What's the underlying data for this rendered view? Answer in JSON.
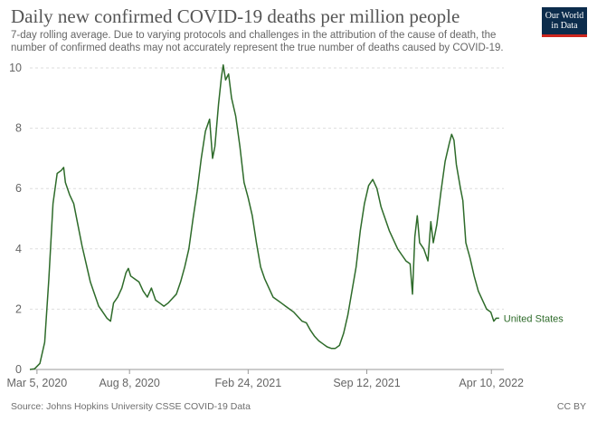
{
  "header": {
    "title": "Daily new confirmed COVID-19 deaths per million people",
    "subtitle": "7-day rolling average. Due to varying protocols and challenges in the attribution of the cause of death, the number of confirmed deaths may not accurately represent the true number of deaths caused by COVID-19."
  },
  "logo": {
    "line1": "Our World",
    "line2": "in Data"
  },
  "footer": {
    "source": "Source: Johns Hopkins University CSSE COVID-19 Data",
    "license": "CC BY"
  },
  "colors": {
    "series": "#2e6b2a",
    "grid": "#dddddd",
    "axis": "#999999"
  },
  "chart_data": {
    "type": "line",
    "title": "Daily new confirmed COVID-19 deaths per million people",
    "ylim": [
      0,
      10
    ],
    "yticks": [
      0,
      2,
      4,
      6,
      8,
      10
    ],
    "xlim": [
      "2020-02-22",
      "2022-05-01"
    ],
    "xticks": [
      {
        "date": "2020-03-05",
        "label": "Mar 5, 2020"
      },
      {
        "date": "2020-08-08",
        "label": "Aug 8, 2020"
      },
      {
        "date": "2021-02-24",
        "label": "Feb 24, 2021"
      },
      {
        "date": "2021-09-12",
        "label": "Sep 12, 2021"
      },
      {
        "date": "2022-04-10",
        "label": "Apr 10, 2022"
      }
    ],
    "grid": true,
    "series": [
      {
        "name": "United States",
        "points": [
          [
            "2020-02-22",
            0.0
          ],
          [
            "2020-03-01",
            0.02
          ],
          [
            "2020-03-10",
            0.2
          ],
          [
            "2020-03-18",
            0.9
          ],
          [
            "2020-03-25",
            3.0
          ],
          [
            "2020-04-01",
            5.5
          ],
          [
            "2020-04-08",
            6.5
          ],
          [
            "2020-04-15",
            6.6
          ],
          [
            "2020-04-19",
            6.7
          ],
          [
            "2020-04-22",
            6.2
          ],
          [
            "2020-04-29",
            5.8
          ],
          [
            "2020-05-06",
            5.5
          ],
          [
            "2020-05-13",
            4.8
          ],
          [
            "2020-05-20",
            4.1
          ],
          [
            "2020-05-27",
            3.5
          ],
          [
            "2020-06-03",
            2.9
          ],
          [
            "2020-06-10",
            2.5
          ],
          [
            "2020-06-17",
            2.1
          ],
          [
            "2020-06-24",
            1.9
          ],
          [
            "2020-07-01",
            1.7
          ],
          [
            "2020-07-07",
            1.6
          ],
          [
            "2020-07-12",
            2.2
          ],
          [
            "2020-07-19",
            2.4
          ],
          [
            "2020-07-26",
            2.7
          ],
          [
            "2020-08-02",
            3.2
          ],
          [
            "2020-08-06",
            3.35
          ],
          [
            "2020-08-10",
            3.1
          ],
          [
            "2020-08-17",
            3.0
          ],
          [
            "2020-08-24",
            2.9
          ],
          [
            "2020-08-31",
            2.6
          ],
          [
            "2020-09-07",
            2.4
          ],
          [
            "2020-09-14",
            2.7
          ],
          [
            "2020-09-21",
            2.3
          ],
          [
            "2020-09-28",
            2.2
          ],
          [
            "2020-10-05",
            2.1
          ],
          [
            "2020-10-12",
            2.2
          ],
          [
            "2020-10-19",
            2.35
          ],
          [
            "2020-10-26",
            2.5
          ],
          [
            "2020-11-02",
            2.9
          ],
          [
            "2020-11-09",
            3.4
          ],
          [
            "2020-11-16",
            4.0
          ],
          [
            "2020-11-23",
            5.0
          ],
          [
            "2020-11-30",
            5.9
          ],
          [
            "2020-12-07",
            7.0
          ],
          [
            "2020-12-14",
            7.9
          ],
          [
            "2020-12-21",
            8.3
          ],
          [
            "2020-12-26",
            7.0
          ],
          [
            "2020-12-30",
            7.4
          ],
          [
            "2021-01-05",
            8.8
          ],
          [
            "2021-01-10",
            9.7
          ],
          [
            "2021-01-13",
            10.1
          ],
          [
            "2021-01-17",
            9.6
          ],
          [
            "2021-01-22",
            9.8
          ],
          [
            "2021-01-27",
            9.0
          ],
          [
            "2021-02-03",
            8.4
          ],
          [
            "2021-02-10",
            7.4
          ],
          [
            "2021-02-17",
            6.2
          ],
          [
            "2021-02-24",
            5.7
          ],
          [
            "2021-03-03",
            5.1
          ],
          [
            "2021-03-10",
            4.2
          ],
          [
            "2021-03-17",
            3.4
          ],
          [
            "2021-03-24",
            3.0
          ],
          [
            "2021-03-31",
            2.7
          ],
          [
            "2021-04-07",
            2.4
          ],
          [
            "2021-04-14",
            2.3
          ],
          [
            "2021-04-21",
            2.2
          ],
          [
            "2021-04-28",
            2.1
          ],
          [
            "2021-05-05",
            2.0
          ],
          [
            "2021-05-12",
            1.9
          ],
          [
            "2021-05-19",
            1.75
          ],
          [
            "2021-05-26",
            1.6
          ],
          [
            "2021-06-02",
            1.55
          ],
          [
            "2021-06-09",
            1.3
          ],
          [
            "2021-06-16",
            1.1
          ],
          [
            "2021-06-23",
            0.95
          ],
          [
            "2021-06-30",
            0.85
          ],
          [
            "2021-07-07",
            0.75
          ],
          [
            "2021-07-14",
            0.7
          ],
          [
            "2021-07-21",
            0.7
          ],
          [
            "2021-07-28",
            0.8
          ],
          [
            "2021-08-04",
            1.2
          ],
          [
            "2021-08-11",
            1.8
          ],
          [
            "2021-08-18",
            2.6
          ],
          [
            "2021-08-25",
            3.4
          ],
          [
            "2021-09-01",
            4.6
          ],
          [
            "2021-09-08",
            5.5
          ],
          [
            "2021-09-15",
            6.1
          ],
          [
            "2021-09-22",
            6.3
          ],
          [
            "2021-09-29",
            6.0
          ],
          [
            "2021-10-06",
            5.4
          ],
          [
            "2021-10-13",
            5.0
          ],
          [
            "2021-10-20",
            4.6
          ],
          [
            "2021-10-27",
            4.3
          ],
          [
            "2021-11-03",
            4.0
          ],
          [
            "2021-11-10",
            3.8
          ],
          [
            "2021-11-17",
            3.6
          ],
          [
            "2021-11-24",
            3.5
          ],
          [
            "2021-11-28",
            2.5
          ],
          [
            "2021-12-02",
            4.4
          ],
          [
            "2021-12-06",
            5.1
          ],
          [
            "2021-12-10",
            4.2
          ],
          [
            "2021-12-17",
            4.0
          ],
          [
            "2021-12-24",
            3.6
          ],
          [
            "2021-12-29",
            4.9
          ],
          [
            "2022-01-02",
            4.2
          ],
          [
            "2022-01-08",
            4.8
          ],
          [
            "2022-01-15",
            5.9
          ],
          [
            "2022-01-22",
            6.9
          ],
          [
            "2022-01-29",
            7.5
          ],
          [
            "2022-02-02",
            7.8
          ],
          [
            "2022-02-06",
            7.6
          ],
          [
            "2022-02-10",
            6.8
          ],
          [
            "2022-02-17",
            6.0
          ],
          [
            "2022-02-21",
            5.6
          ],
          [
            "2022-02-26",
            4.2
          ],
          [
            "2022-03-05",
            3.7
          ],
          [
            "2022-03-12",
            3.1
          ],
          [
            "2022-03-19",
            2.6
          ],
          [
            "2022-03-26",
            2.3
          ],
          [
            "2022-04-02",
            2.0
          ],
          [
            "2022-04-09",
            1.9
          ],
          [
            "2022-04-14",
            1.6
          ],
          [
            "2022-04-18",
            1.7
          ],
          [
            "2022-04-23",
            1.7
          ]
        ]
      }
    ]
  }
}
